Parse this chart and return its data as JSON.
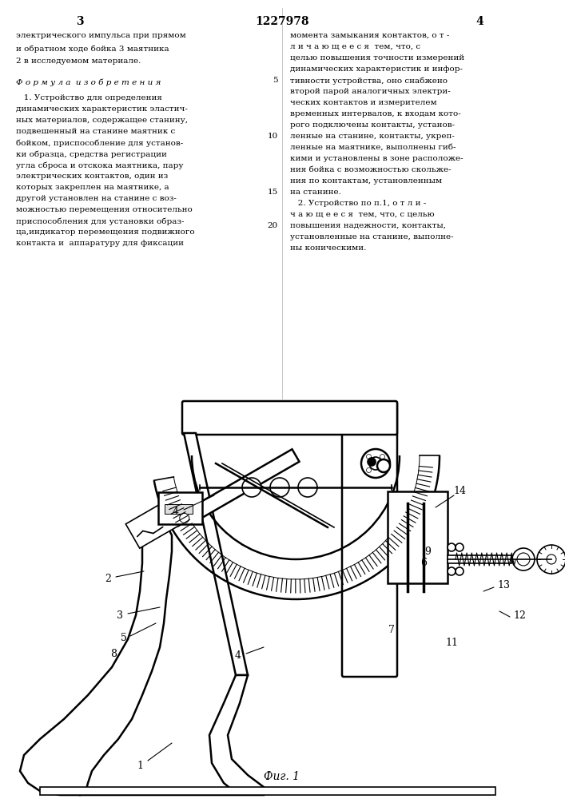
{
  "title": "1227978",
  "page_left": "3",
  "page_right": "4",
  "fig_caption": "Фиг. 1",
  "text_left_top": "электрического импульса при прямом\nи обратном ходе бойка 3 маятника\n2 в исследуемом материале.",
  "text_left_formula": "Ф о р м у л а  и з о б р е т е н и я",
  "text_left_body": "   1. Устройство для определения\nдинамических характеристик эластич-\nных материалов, содержащее станину,\nподвешенный на станине маятник с\nбойком, приспособление для установ-\nки образца, средства регистрации\nугла сброса и отскока маятника, пару\nэлектрических контактов, один из\nкоторых закреплен на маятнике, а\nдругой установлен на станине с воз-\nможностью перемещения относительно\nприспособления для установки образ-\nца,индикатор перемещения подвижного\nконтакта и  аппаратуру для фиксации",
  "text_right_top": "момента замыкания контактов, о т -\nл и ч а ю щ е е с я  тем, что, с\nцелью повышения точности измерений\nдинамических характеристик и инфор-\nтивности устройства, оно снабжено\nвторой парой аналогичных электри-\nческих контактов и измерителем\nвременных интервалов, к входам кото-\nрого подключены контакты, установ-\nленные на станине, контакты, укреп-\nленные на маятнике, выполнены гиб-\nкими и установлены в зоне расположе-\nния бойка с возможностью скольже-\nния по контактам, установленным\nна станине.",
  "text_right_body": "   2. Устройство по п.1, о т л и -\nч а ю щ е е с я  тем, что, с целью\nповышения надежности, контакты,\nустановленные на станине, выполне-\nны коническими.",
  "line_numbers_right": [
    "5",
    "10",
    "15",
    "20"
  ],
  "bg_color": "#ffffff",
  "line_color": "#000000",
  "text_color": "#000000"
}
